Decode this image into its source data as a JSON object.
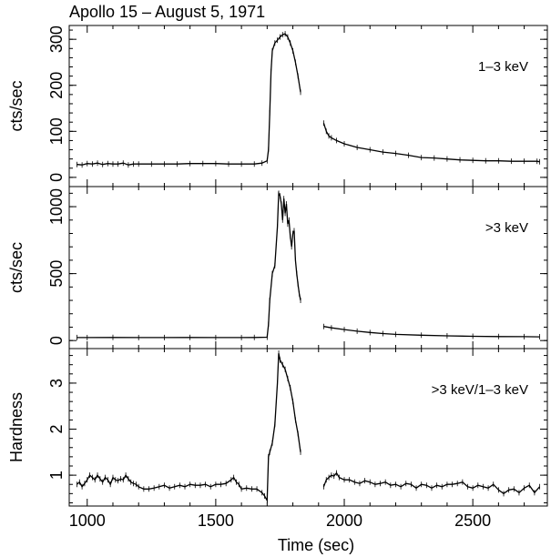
{
  "title": "Apollo 15 – August 5, 1971",
  "xlabel": "Time (sec)",
  "x_ticks": [
    1000,
    1500,
    2000,
    2500
  ],
  "xlim": [
    930,
    2790
  ],
  "chart_data": [
    {
      "type": "line",
      "panel_label": "1–3 keV",
      "ylabel": "cts/sec",
      "ylim": [
        -20,
        330
      ],
      "y_ticks": [
        0,
        100,
        200,
        300
      ],
      "segments": [
        {
          "x": [
            960,
            980,
            1000,
            1020,
            1040,
            1060,
            1080,
            1100,
            1120,
            1140,
            1160,
            1180,
            1200,
            1250,
            1300,
            1350,
            1400,
            1450,
            1500,
            1550,
            1600,
            1650,
            1680,
            1700,
            1705,
            1710,
            1715,
            1720,
            1730,
            1740,
            1750,
            1760,
            1770,
            1780,
            1790,
            1800,
            1810,
            1820,
            1830
          ],
          "y": [
            28,
            27,
            30,
            29,
            31,
            28,
            30,
            29,
            29,
            31,
            27,
            29,
            29,
            29,
            29,
            29,
            30,
            30,
            30,
            29,
            29,
            29,
            31,
            36,
            60,
            140,
            230,
            275,
            292,
            298,
            305,
            310,
            312,
            305,
            292,
            275,
            250,
            220,
            185
          ]
        },
        {
          "x": [
            1920,
            1930,
            1940,
            1950,
            1970,
            2000,
            2050,
            2100,
            2150,
            2200,
            2250,
            2300,
            2350,
            2400,
            2450,
            2500,
            2550,
            2600,
            2650,
            2700,
            2750,
            2760
          ],
          "y": [
            118,
            100,
            90,
            86,
            80,
            73,
            65,
            60,
            55,
            52,
            48,
            43,
            42,
            40,
            38,
            37,
            36,
            36,
            35,
            35,
            35,
            34
          ]
        }
      ]
    },
    {
      "type": "line",
      "panel_label": ">3 keV",
      "ylabel": "cts/sec",
      "ylim": [
        -60,
        1150
      ],
      "y_ticks": [
        0,
        500,
        1000
      ],
      "segments": [
        {
          "x": [
            960,
            1000,
            1100,
            1200,
            1300,
            1400,
            1500,
            1600,
            1650,
            1700,
            1705,
            1710,
            1720,
            1730,
            1740,
            1745,
            1750,
            1755,
            1760,
            1765,
            1770,
            1775,
            1780,
            1785,
            1790,
            1795,
            1800,
            1805,
            1810,
            1815,
            1820,
            1825,
            1830
          ],
          "y": [
            22,
            22,
            23,
            22,
            22,
            23,
            22,
            22,
            23,
            25,
            120,
            300,
            500,
            560,
            850,
            1100,
            1080,
            1020,
            900,
            1060,
            950,
            1020,
            870,
            900,
            780,
            700,
            800,
            820,
            600,
            500,
            420,
            350,
            300
          ]
        },
        {
          "x": [
            1920,
            1950,
            2000,
            2050,
            2100,
            2150,
            2200,
            2300,
            2400,
            2500,
            2600,
            2700,
            2760
          ],
          "y": [
            105,
            95,
            82,
            70,
            60,
            52,
            46,
            40,
            35,
            32,
            30,
            29,
            28
          ]
        }
      ]
    },
    {
      "type": "line",
      "panel_label": ">3 keV/1–3 keV",
      "ylabel": "Hardness",
      "ylim": [
        0.33,
        3.75
      ],
      "y_ticks": [
        1,
        2,
        3
      ],
      "segments": [
        {
          "x": [
            960,
            970,
            980,
            990,
            1000,
            1010,
            1020,
            1030,
            1040,
            1050,
            1060,
            1070,
            1080,
            1090,
            1100,
            1110,
            1120,
            1130,
            1140,
            1150,
            1160,
            1170,
            1180,
            1190,
            1200,
            1220,
            1240,
            1260,
            1280,
            1300,
            1320,
            1340,
            1360,
            1380,
            1400,
            1420,
            1440,
            1460,
            1480,
            1500,
            1520,
            1540,
            1560,
            1570,
            1580,
            1590,
            1600,
            1620,
            1640,
            1660,
            1680,
            1690,
            1700,
            1705,
            1710,
            1720,
            1730,
            1740,
            1745,
            1750,
            1760,
            1770,
            1780,
            1790,
            1800,
            1810,
            1820,
            1830
          ],
          "y": [
            0.8,
            0.85,
            0.75,
            0.82,
            0.9,
            1.0,
            0.95,
            0.9,
            1.0,
            0.92,
            0.85,
            0.95,
            0.9,
            0.8,
            0.95,
            0.9,
            0.88,
            0.92,
            0.9,
            1.0,
            0.92,
            0.85,
            0.82,
            0.8,
            0.75,
            0.7,
            0.7,
            0.72,
            0.75,
            0.78,
            0.72,
            0.75,
            0.78,
            0.75,
            0.8,
            0.78,
            0.78,
            0.8,
            0.75,
            0.8,
            0.8,
            0.82,
            0.9,
            0.95,
            0.85,
            0.8,
            0.7,
            0.72,
            0.7,
            0.7,
            0.62,
            0.55,
            0.45,
            1.4,
            1.5,
            1.7,
            2.1,
            3.0,
            3.65,
            3.5,
            3.4,
            3.3,
            3.1,
            2.9,
            2.6,
            2.2,
            1.9,
            1.5
          ]
        },
        {
          "x": [
            1920,
            1930,
            1940,
            1950,
            1960,
            1970,
            1980,
            2000,
            2020,
            2040,
            2060,
            2080,
            2100,
            2120,
            2140,
            2160,
            2180,
            2200,
            2220,
            2240,
            2260,
            2280,
            2300,
            2320,
            2340,
            2360,
            2380,
            2400,
            2420,
            2440,
            2460,
            2480,
            2500,
            2520,
            2540,
            2560,
            2580,
            2600,
            2620,
            2640,
            2660,
            2680,
            2700,
            2720,
            2740,
            2760
          ],
          "y": [
            0.75,
            0.9,
            0.95,
            1.0,
            0.98,
            1.05,
            0.95,
            0.9,
            0.9,
            0.85,
            0.82,
            0.88,
            0.85,
            0.8,
            0.82,
            0.85,
            0.78,
            0.8,
            0.75,
            0.82,
            0.8,
            0.72,
            0.8,
            0.78,
            0.72,
            0.78,
            0.75,
            0.8,
            0.8,
            0.82,
            0.85,
            0.75,
            0.72,
            0.78,
            0.75,
            0.72,
            0.8,
            0.68,
            0.6,
            0.68,
            0.7,
            0.62,
            0.72,
            0.78,
            0.62,
            0.75
          ]
        }
      ]
    }
  ]
}
